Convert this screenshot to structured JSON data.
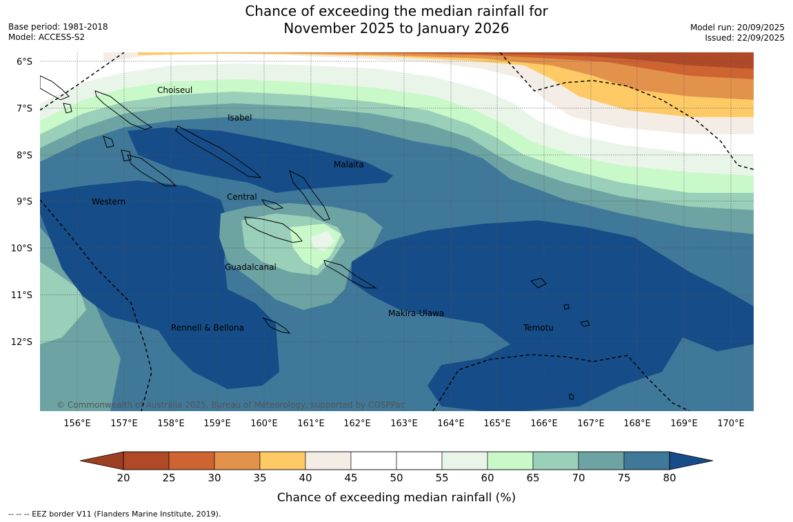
{
  "title": {
    "line1": "Chance of exceeding the median rainfall for",
    "line2": "November 2025 to January 2026"
  },
  "meta_left": {
    "base_period": "Base period: 1981-2018",
    "model": "Model: ACCESS-S2"
  },
  "meta_right": {
    "model_run": "Model run: 20/09/2025",
    "issued": "Issued: 22/09/2025"
  },
  "map": {
    "lat_labels": [
      "6°S",
      "7°S",
      "8°S",
      "9°S",
      "10°S",
      "11°S",
      "12°S"
    ],
    "lon_labels": [
      "156°E",
      "157°E",
      "158°E",
      "159°E",
      "160°E",
      "161°E",
      "162°E",
      "163°E",
      "164°E",
      "165°E",
      "166°E",
      "167°E",
      "168°E",
      "169°E",
      "170°E"
    ],
    "regions": {
      "choiseul": "Choiseul",
      "isabel": "Isabel",
      "malaita": "Malaita",
      "western": "Western",
      "central": "Central",
      "guadalcanal": "Guadalcanal",
      "makira": "Makira-Ulawa",
      "rennell": "Rennell & Bellona",
      "temotu": "Temotu"
    },
    "copyright": "© Commonwealth of Australia 2025, Bureau of Meteorology, supported by COSPPac"
  },
  "colorbar": {
    "ticks": [
      "20",
      "25",
      "30",
      "35",
      "40",
      "45",
      "50",
      "55",
      "60",
      "65",
      "70",
      "75",
      "80"
    ],
    "low_color": "#9c3f22",
    "high_color": "#164c87",
    "colors": [
      "#b04927",
      "#cd6431",
      "#e2924a",
      "#fdca66",
      "#f3ede6",
      "#ffffff",
      "#ffffff",
      "#eaf5ea",
      "#c9f9c9",
      "#9acfb9",
      "#6da3a3",
      "#3f7899"
    ],
    "label": "Chance of exceeding median rainfall (%)"
  },
  "footnote": "--  --  -- EEZ border V11 (Flanders Marine Institute, 2019)."
}
